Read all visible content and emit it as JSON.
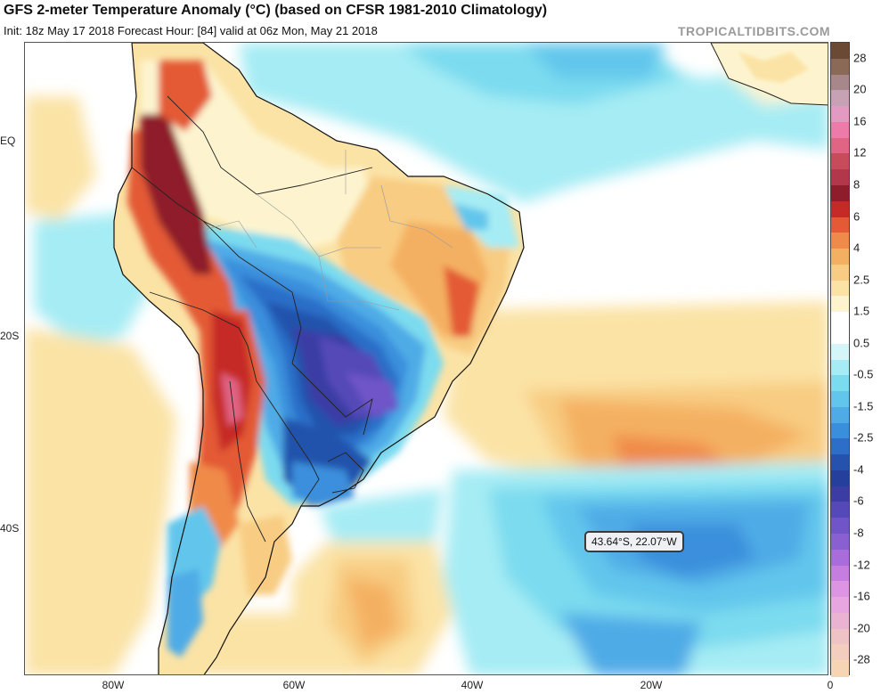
{
  "header": {
    "title": "GFS 2-meter Temperature Anomaly (°C) (based on CFSR 1981-2010 Climatology)",
    "subtitle": "Init: 18z May 17 2018   Forecast Hour: [84]   valid at 06z Mon, May 21 2018",
    "brand": "TROPICALTIDBITS.COM"
  },
  "map": {
    "lat_labels": [
      "EQ",
      "20S",
      "40S"
    ],
    "lon_labels": [
      "80W",
      "60W",
      "40W",
      "20W",
      "0"
    ],
    "tooltip": "43.64°S, 22.07°W"
  },
  "colorbar": {
    "labels": [
      "28",
      "20",
      "16",
      "12",
      "8",
      "6",
      "4",
      "2.5",
      "1.5",
      "0.5",
      "-0.5",
      "-1.5",
      "-2.5",
      "-4",
      "-6",
      "-8",
      "-12",
      "-16",
      "-20",
      "-28"
    ],
    "colors": [
      "#6b4a35",
      "#8a6a57",
      "#a7878a",
      "#c7a2b4",
      "#e39ac2",
      "#ee7aa9",
      "#e06483",
      "#c74b5b",
      "#b2374a",
      "#8e1c2b",
      "#c62a26",
      "#e35a35",
      "#f08a4a",
      "#f4b062",
      "#f8cc82",
      "#fbe3a6",
      "#fdf4cf",
      "#ffffff",
      "#ffffff",
      "#d5f6f9",
      "#a6ecf4",
      "#7bdbef",
      "#62c6ec",
      "#4fabe6",
      "#3a8fdc",
      "#2c6ec8",
      "#2452ac",
      "#243f9c",
      "#3b3ca4",
      "#5548b8",
      "#6f55c8",
      "#8a5fd2",
      "#a86cdb",
      "#c57ee0",
      "#dd95e3",
      "#e7a6df",
      "#eab3d2",
      "#efc3c6",
      "#f3cdbd",
      "#f6d5b4"
    ]
  }
}
